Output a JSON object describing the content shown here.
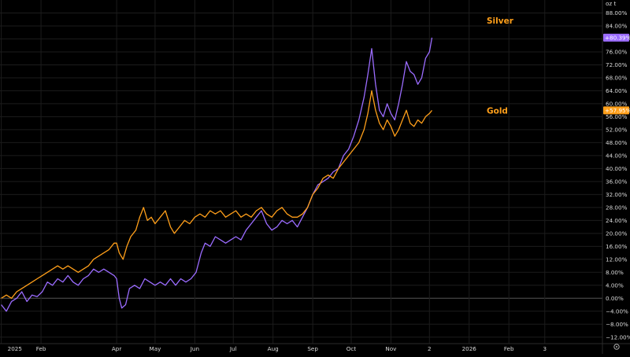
{
  "toolbar": {
    "scale_label": "oz t"
  },
  "colors": {
    "background": "#000000",
    "grid": "#1c1c1c",
    "axis_text": "#d9d9d9",
    "zero_line": "#555555"
  },
  "icons": {
    "corner_settings": "settings-icon"
  },
  "chart_data": {
    "type": "line",
    "title": "",
    "xlabel": "",
    "ylabel": "",
    "ylim": [
      -14,
      92
    ],
    "y_unit": "%",
    "y_ticks": [
      -12,
      -8,
      -4,
      0,
      4,
      8,
      12,
      16,
      20,
      24,
      28,
      32,
      36,
      40,
      44,
      48,
      52,
      56,
      60,
      64,
      68,
      72,
      76,
      80,
      84,
      88
    ],
    "y_tick_labels": [
      "−12.00%",
      "−8.00%",
      "−4.00%",
      "0.00%",
      "4.00%",
      "8.00%",
      "12.00%",
      "16.00%",
      "20.00%",
      "24.00%",
      "28.00%",
      "32.00%",
      "36.00%",
      "40.00%",
      "44.00%",
      "48.00%",
      "52.00%",
      "56.00%",
      "60.00%",
      "64.00%",
      "68.00%",
      "72.00%",
      "76.00%",
      "80.00%",
      "84.00%",
      "88.00%"
    ],
    "xlim": [
      "2024-12-31",
      "2026-04-15"
    ],
    "x_ticks": [
      {
        "date": "2025-01-01",
        "label": "2025"
      },
      {
        "date": "2025-02-01",
        "label": "Feb"
      },
      {
        "date": "2025-04-01",
        "label": "Apr"
      },
      {
        "date": "2025-05-01",
        "label": "May"
      },
      {
        "date": "2025-06-01",
        "label": "Jun"
      },
      {
        "date": "2025-07-01",
        "label": "Jul"
      },
      {
        "date": "2025-08-01",
        "label": "Aug"
      },
      {
        "date": "2025-09-01",
        "label": "Sep"
      },
      {
        "date": "2025-10-01",
        "label": "Oct"
      },
      {
        "date": "2025-11-01",
        "label": "Nov"
      },
      {
        "date": "2025-12-01",
        "label": "2"
      },
      {
        "date": "2026-01-01",
        "label": "2026"
      },
      {
        "date": "2026-02-01",
        "label": "Feb"
      },
      {
        "date": "2026-03-01",
        "label": "3"
      }
    ],
    "grid": true,
    "series": [
      {
        "name": "Silver",
        "color": "#9b6cff",
        "last_value_label": "+80.39%",
        "points": [
          [
            "2025-01-01",
            -2
          ],
          [
            "2025-01-05",
            -4
          ],
          [
            "2025-01-09",
            -1
          ],
          [
            "2025-01-13",
            0
          ],
          [
            "2025-01-17",
            2
          ],
          [
            "2025-01-21",
            -1
          ],
          [
            "2025-01-25",
            1
          ],
          [
            "2025-01-29",
            0.5
          ],
          [
            "2025-02-02",
            2
          ],
          [
            "2025-02-06",
            5
          ],
          [
            "2025-02-10",
            4
          ],
          [
            "2025-02-14",
            6
          ],
          [
            "2025-02-18",
            5
          ],
          [
            "2025-02-22",
            7
          ],
          [
            "2025-02-26",
            5
          ],
          [
            "2025-03-02",
            4
          ],
          [
            "2025-03-06",
            6
          ],
          [
            "2025-03-10",
            7
          ],
          [
            "2025-03-14",
            9
          ],
          [
            "2025-03-18",
            8
          ],
          [
            "2025-03-22",
            9
          ],
          [
            "2025-03-26",
            8
          ],
          [
            "2025-03-30",
            7
          ],
          [
            "2025-04-01",
            6
          ],
          [
            "2025-04-03",
            0
          ],
          [
            "2025-04-05",
            -3
          ],
          [
            "2025-04-08",
            -2
          ],
          [
            "2025-04-11",
            3
          ],
          [
            "2025-04-15",
            4
          ],
          [
            "2025-04-19",
            3
          ],
          [
            "2025-04-23",
            6
          ],
          [
            "2025-04-27",
            5
          ],
          [
            "2025-05-01",
            4
          ],
          [
            "2025-05-05",
            5
          ],
          [
            "2025-05-09",
            4
          ],
          [
            "2025-05-13",
            6
          ],
          [
            "2025-05-17",
            4
          ],
          [
            "2025-05-21",
            6
          ],
          [
            "2025-05-25",
            5
          ],
          [
            "2025-05-29",
            6
          ],
          [
            "2025-06-02",
            8
          ],
          [
            "2025-06-06",
            14
          ],
          [
            "2025-06-09",
            17
          ],
          [
            "2025-06-13",
            16
          ],
          [
            "2025-06-17",
            19
          ],
          [
            "2025-06-21",
            18
          ],
          [
            "2025-06-25",
            17
          ],
          [
            "2025-06-29",
            18
          ],
          [
            "2025-07-03",
            19
          ],
          [
            "2025-07-07",
            18
          ],
          [
            "2025-07-11",
            21
          ],
          [
            "2025-07-15",
            23
          ],
          [
            "2025-07-19",
            25
          ],
          [
            "2025-07-23",
            27
          ],
          [
            "2025-07-27",
            23
          ],
          [
            "2025-07-31",
            21
          ],
          [
            "2025-08-04",
            22
          ],
          [
            "2025-08-08",
            24
          ],
          [
            "2025-08-12",
            23
          ],
          [
            "2025-08-16",
            24
          ],
          [
            "2025-08-20",
            22
          ],
          [
            "2025-08-24",
            25
          ],
          [
            "2025-08-28",
            28
          ],
          [
            "2025-09-01",
            32
          ],
          [
            "2025-09-05",
            35
          ],
          [
            "2025-09-09",
            36
          ],
          [
            "2025-09-13",
            37
          ],
          [
            "2025-09-17",
            39
          ],
          [
            "2025-09-21",
            40
          ],
          [
            "2025-09-25",
            44
          ],
          [
            "2025-09-29",
            46
          ],
          [
            "2025-10-03",
            50
          ],
          [
            "2025-10-07",
            55
          ],
          [
            "2025-10-11",
            62
          ],
          [
            "2025-10-14",
            69
          ],
          [
            "2025-10-17",
            77
          ],
          [
            "2025-10-20",
            66
          ],
          [
            "2025-10-23",
            58
          ],
          [
            "2025-10-26",
            56
          ],
          [
            "2025-10-29",
            60
          ],
          [
            "2025-11-01",
            57
          ],
          [
            "2025-11-04",
            55
          ],
          [
            "2025-11-07",
            60
          ],
          [
            "2025-11-10",
            66
          ],
          [
            "2025-11-13",
            73
          ],
          [
            "2025-11-16",
            70
          ],
          [
            "2025-11-19",
            69
          ],
          [
            "2025-11-22",
            66
          ],
          [
            "2025-11-25",
            68
          ],
          [
            "2025-11-28",
            74
          ],
          [
            "2025-12-01",
            76
          ],
          [
            "2025-12-03",
            80.39
          ]
        ]
      },
      {
        "name": "Gold",
        "color": "#ff9f1a",
        "last_value_label": "+57.95%",
        "points": [
          [
            "2025-01-01",
            0
          ],
          [
            "2025-01-05",
            1
          ],
          [
            "2025-01-09",
            0
          ],
          [
            "2025-01-13",
            2
          ],
          [
            "2025-01-17",
            3
          ],
          [
            "2025-01-21",
            4
          ],
          [
            "2025-01-25",
            5
          ],
          [
            "2025-01-29",
            6
          ],
          [
            "2025-02-02",
            7
          ],
          [
            "2025-02-06",
            8
          ],
          [
            "2025-02-10",
            9
          ],
          [
            "2025-02-14",
            10
          ],
          [
            "2025-02-18",
            9
          ],
          [
            "2025-02-22",
            10
          ],
          [
            "2025-02-26",
            9
          ],
          [
            "2025-03-02",
            8
          ],
          [
            "2025-03-06",
            9
          ],
          [
            "2025-03-10",
            10
          ],
          [
            "2025-03-14",
            12
          ],
          [
            "2025-03-18",
            13
          ],
          [
            "2025-03-22",
            14
          ],
          [
            "2025-03-26",
            15
          ],
          [
            "2025-03-30",
            17
          ],
          [
            "2025-04-01",
            17
          ],
          [
            "2025-04-03",
            14
          ],
          [
            "2025-04-06",
            12
          ],
          [
            "2025-04-09",
            16
          ],
          [
            "2025-04-12",
            19
          ],
          [
            "2025-04-16",
            21
          ],
          [
            "2025-04-19",
            25
          ],
          [
            "2025-04-22",
            28
          ],
          [
            "2025-04-25",
            24
          ],
          [
            "2025-04-28",
            25
          ],
          [
            "2025-05-01",
            23
          ],
          [
            "2025-05-05",
            25
          ],
          [
            "2025-05-09",
            27
          ],
          [
            "2025-05-13",
            22
          ],
          [
            "2025-05-16",
            20
          ],
          [
            "2025-05-20",
            22
          ],
          [
            "2025-05-24",
            24
          ],
          [
            "2025-05-28",
            23
          ],
          [
            "2025-06-01",
            25
          ],
          [
            "2025-06-05",
            26
          ],
          [
            "2025-06-09",
            25
          ],
          [
            "2025-06-13",
            27
          ],
          [
            "2025-06-17",
            26
          ],
          [
            "2025-06-21",
            27
          ],
          [
            "2025-06-25",
            25
          ],
          [
            "2025-06-29",
            26
          ],
          [
            "2025-07-03",
            27
          ],
          [
            "2025-07-07",
            25
          ],
          [
            "2025-07-11",
            26
          ],
          [
            "2025-07-15",
            25
          ],
          [
            "2025-07-19",
            27
          ],
          [
            "2025-07-23",
            28
          ],
          [
            "2025-07-27",
            26
          ],
          [
            "2025-07-31",
            25
          ],
          [
            "2025-08-04",
            27
          ],
          [
            "2025-08-08",
            28
          ],
          [
            "2025-08-12",
            26
          ],
          [
            "2025-08-16",
            25
          ],
          [
            "2025-08-20",
            25
          ],
          [
            "2025-08-24",
            26
          ],
          [
            "2025-08-28",
            28
          ],
          [
            "2025-09-01",
            32
          ],
          [
            "2025-09-05",
            34
          ],
          [
            "2025-09-09",
            37
          ],
          [
            "2025-09-13",
            38
          ],
          [
            "2025-09-17",
            37
          ],
          [
            "2025-09-21",
            40
          ],
          [
            "2025-09-25",
            42
          ],
          [
            "2025-09-29",
            44
          ],
          [
            "2025-10-03",
            46
          ],
          [
            "2025-10-07",
            48
          ],
          [
            "2025-10-11",
            52
          ],
          [
            "2025-10-14",
            57
          ],
          [
            "2025-10-17",
            64
          ],
          [
            "2025-10-20",
            58
          ],
          [
            "2025-10-23",
            54
          ],
          [
            "2025-10-26",
            52
          ],
          [
            "2025-10-29",
            55
          ],
          [
            "2025-11-01",
            53
          ],
          [
            "2025-11-04",
            50
          ],
          [
            "2025-11-07",
            52
          ],
          [
            "2025-11-10",
            55
          ],
          [
            "2025-11-13",
            58
          ],
          [
            "2025-11-16",
            54
          ],
          [
            "2025-11-19",
            53
          ],
          [
            "2025-11-22",
            55
          ],
          [
            "2025-11-25",
            54
          ],
          [
            "2025-11-28",
            56
          ],
          [
            "2025-12-01",
            57
          ],
          [
            "2025-12-03",
            57.95
          ]
        ]
      }
    ],
    "annotations": [
      {
        "text": "Silver",
        "anchor_series": "Silver",
        "color": "#ff9f1a"
      },
      {
        "text": "Gold",
        "anchor_series": "Gold",
        "color": "#ff9f1a"
      }
    ]
  }
}
